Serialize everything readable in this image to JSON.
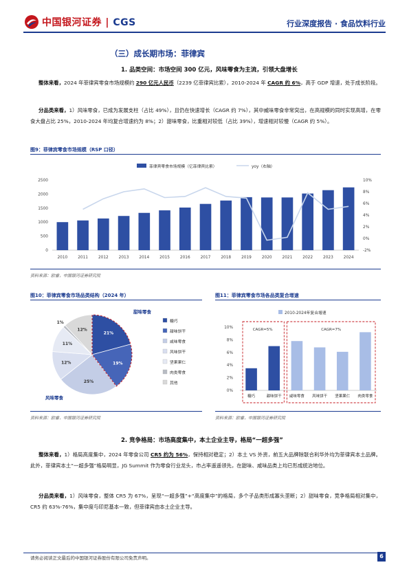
{
  "header": {
    "logo_cn": "中国银河证券",
    "logo_en": "CGS",
    "report_type": "行业深度报告 · 食品饮料行业"
  },
  "section_title": "（三）成长期市场：菲律宾",
  "subsection1_title": "1. 品类空间：市场空间 300 亿元，风味零食为主流，引领大盘增长",
  "para1": {
    "lead": "整体来看，",
    "t1": "2024 年菲律宾零食市场规模约 ",
    "hl1": "290 亿元人民币",
    "t2": "（2239 亿菲律宾比索），2010-2024 年 ",
    "hl2": "CAGR 约 6%",
    "t3": "，高于 GDP 增速，处于成长阶段。"
  },
  "para2": {
    "lead": "分品类来看，",
    "text": "1）风味零食，已成为发展支柱（占比 49%），且仍在快速增长（CAGR 约 7%），其中威味零食非常突出，在高规模的同时实现高增，在零食大盘占比 25%，2010-2024 年均复合增速约为 8%；2）甜味零食，比重相对较低（占比 39%），增速相对较慢（CAGR 约 5%）。"
  },
  "fig9": {
    "caption": "图9：菲律宾零食市场规模（RSP 口径）",
    "source": "资料来源：欧睿，中国银河证券研究院"
  },
  "fig10": {
    "caption": "图10：菲律宾零食市场品类结构（2024 年）",
    "source": "资料来源：欧睿，中国银河证券研究院",
    "label_sweet": "甜味零食",
    "label_savory": "风味零食"
  },
  "fig11": {
    "caption": "图11：菲律宾零食市场各品类复合增速",
    "source": "资料来源：欧睿，中国银河证券研究院"
  },
  "chart_data": [
    {
      "type": "bar",
      "categories": [
        "2010",
        "2011",
        "2012",
        "2013",
        "2014",
        "2015",
        "2016",
        "2017",
        "2018",
        "2019",
        "2020",
        "2021",
        "2022",
        "2023",
        "2024"
      ],
      "series": [
        {
          "name": "菲律宾零食市场规模（亿菲律宾比索）",
          "kind": "bar",
          "axis": "left",
          "color": "#2e4fa3",
          "values": [
            1000,
            1060,
            1130,
            1220,
            1330,
            1420,
            1520,
            1650,
            1770,
            1890,
            1880,
            1880,
            2020,
            2140,
            2239
          ]
        },
        {
          "name": "yoy（右轴）",
          "kind": "line",
          "axis": "right",
          "color": "#c8d6ec",
          "values": [
            null,
            5.0,
            6.8,
            8.0,
            8.5,
            7.0,
            7.2,
            8.7,
            7.2,
            6.9,
            -0.3,
            0.2,
            7.8,
            5.0,
            5.5
          ]
        }
      ],
      "ylim_left": [
        0,
        2500
      ],
      "yticks_left": [
        "0",
        "500",
        "1000",
        "1500",
        "2000",
        "2500"
      ],
      "ylim_right": [
        -2,
        10
      ],
      "yticks_right": [
        "-2%",
        "0%",
        "2%",
        "4%",
        "6%",
        "8%",
        "10%"
      ],
      "grid": false,
      "legend": "top"
    },
    {
      "type": "pie",
      "categories": [
        "糖巧",
        "甜味饼干",
        "咸味零食",
        "风味饼干",
        "坚果果仁",
        "肉类零食",
        "其他"
      ],
      "values": [
        21,
        19,
        25,
        12,
        11,
        1,
        12
      ],
      "labels": [
        "21%",
        "19%",
        "25%",
        "12%",
        "11%",
        "1%",
        "12%"
      ],
      "colors": [
        "#2e4fa3",
        "#4665b8",
        "#c3cde6",
        "#d9dff0",
        "#e6eaf4",
        "#b8bcc4",
        "#d9d9d9"
      ],
      "legend": "right"
    },
    {
      "type": "bar",
      "categories": [
        "糖巧",
        "甜味饼干",
        "咸味零食",
        "风味饼干",
        "坚果果仁",
        "肉类零食"
      ],
      "series": [
        {
          "name": "2010-2024年复合增速",
          "values": [
            3.5,
            7.0,
            7.8,
            6.8,
            6.1,
            9.2
          ]
        }
      ],
      "colors": [
        "#2e4fa3",
        "#2e4fa3",
        "#a8bde6",
        "#a8bde6",
        "#a8bde6",
        "#a8bde6"
      ],
      "ylim": [
        0,
        10
      ],
      "yticks": [
        "0%",
        "2%",
        "4%",
        "6%",
        "8%",
        "10%"
      ],
      "annotations": [
        "CAGR=5%",
        "CAGR=7%"
      ],
      "legend": "top"
    }
  ],
  "subsection2_title": "2. 竞争格局：市场高度集中，本土企业主导，格局“一超多强”",
  "para3": {
    "lead": "整体来看，",
    "t1": "1）格局高度集中，2024 年零食公司 ",
    "hl": "CR5 约为 56%",
    "t2": "，保持相对稳定；2）本土 VS 外资，前五大品牌除联合利华外均为菲律宾本土品牌。此外，菲律宾本土“一超多强”格局明显，JG Summit 作为零食行业龙头，市占率遥遥领先，在甜味、咸味品类上均已形成统治地位。"
  },
  "para4": {
    "lead": "分品类来看，",
    "text": "1）风味零食，整体 CR5 为 67%，呈现“一超多强”+“高度集中”的格局，多个子品类形成寡头垄断；2）甜味零食，竞争格局相对集中，CR5 约 63%-76%，集中度与印尼基本一致，但菲律宾由本土企业主导。"
  },
  "footer": {
    "disclaimer": "请务必阅读正文最后的中国银河证券股份有限公司免责声明。",
    "page": "6"
  },
  "colors": {
    "brand_blue": "#1a3a8f",
    "brand_red": "#c4161c",
    "bar_blue": "#2e4fa3",
    "light_blue": "#a8bde6"
  }
}
